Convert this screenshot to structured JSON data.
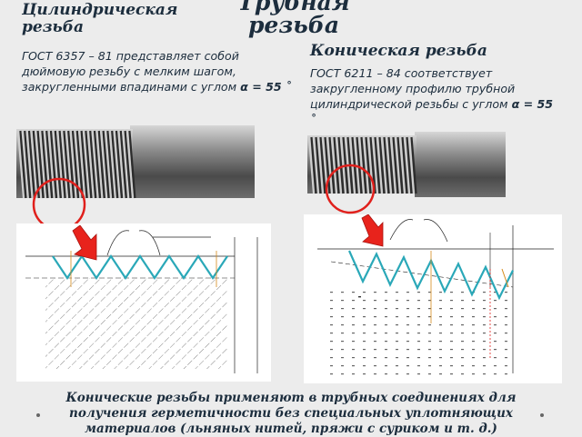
{
  "title": "Трубная резьба",
  "left": {
    "heading": "Цилиндрическая резьба",
    "desc_main": "ГОСТ 6357 – 81 представляет собой дюймовую резьбу с мелким шагом, закругленными впадинами с углом ",
    "angle": "α = 55 ˚"
  },
  "right": {
    "heading": "Коническая резьба",
    "desc_main": "ГОСТ 6211 – 84 соответствует закругленному профилю трубной цилиндрической резьбы с углом ",
    "angle": "α = 55 ˚"
  },
  "footer": "Конические резьбы применяют в трубных соединениях для получения герметичности без специальных уплотняющих материалов (льняных нитей, пряжи с суриком и т. д.)",
  "colors": {
    "text": "#1c2d3d",
    "highlight_circle": "#e0201c",
    "arrow": "#e8231c",
    "thread_profile": "#2aa8b8",
    "background": "#ececec"
  }
}
